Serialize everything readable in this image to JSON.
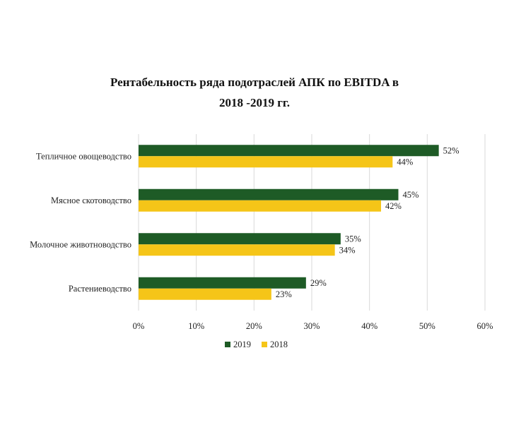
{
  "chart_data": {
    "type": "bar",
    "orientation": "horizontal",
    "title": "Рентабельность ряда подотраслей АПК по EBITDA в 2018 -2019 гг.",
    "title_lines": [
      "Рентабельность ряда подотраслей АПК по EBITDA в",
      "2018 -2019 гг."
    ],
    "categories": [
      "Тепличное овощеводство",
      "Мясное скотоводство",
      "Молочное животноводство",
      "Растениеводство"
    ],
    "series": [
      {
        "name": "2019",
        "values": [
          52,
          45,
          35,
          29
        ],
        "labels": [
          "52%",
          "45%",
          "35%",
          "29%"
        ],
        "color": "#1e5b26"
      },
      {
        "name": "2018",
        "values": [
          44,
          42,
          34,
          23
        ],
        "labels": [
          "44%",
          "42%",
          "34%",
          "23%"
        ],
        "color": "#f5c518"
      }
    ],
    "x_ticks": [
      "0%",
      "10%",
      "20%",
      "30%",
      "40%",
      "50%",
      "60%"
    ],
    "xlim": [
      0,
      60
    ],
    "grid": true,
    "legend_position": "bottom"
  }
}
